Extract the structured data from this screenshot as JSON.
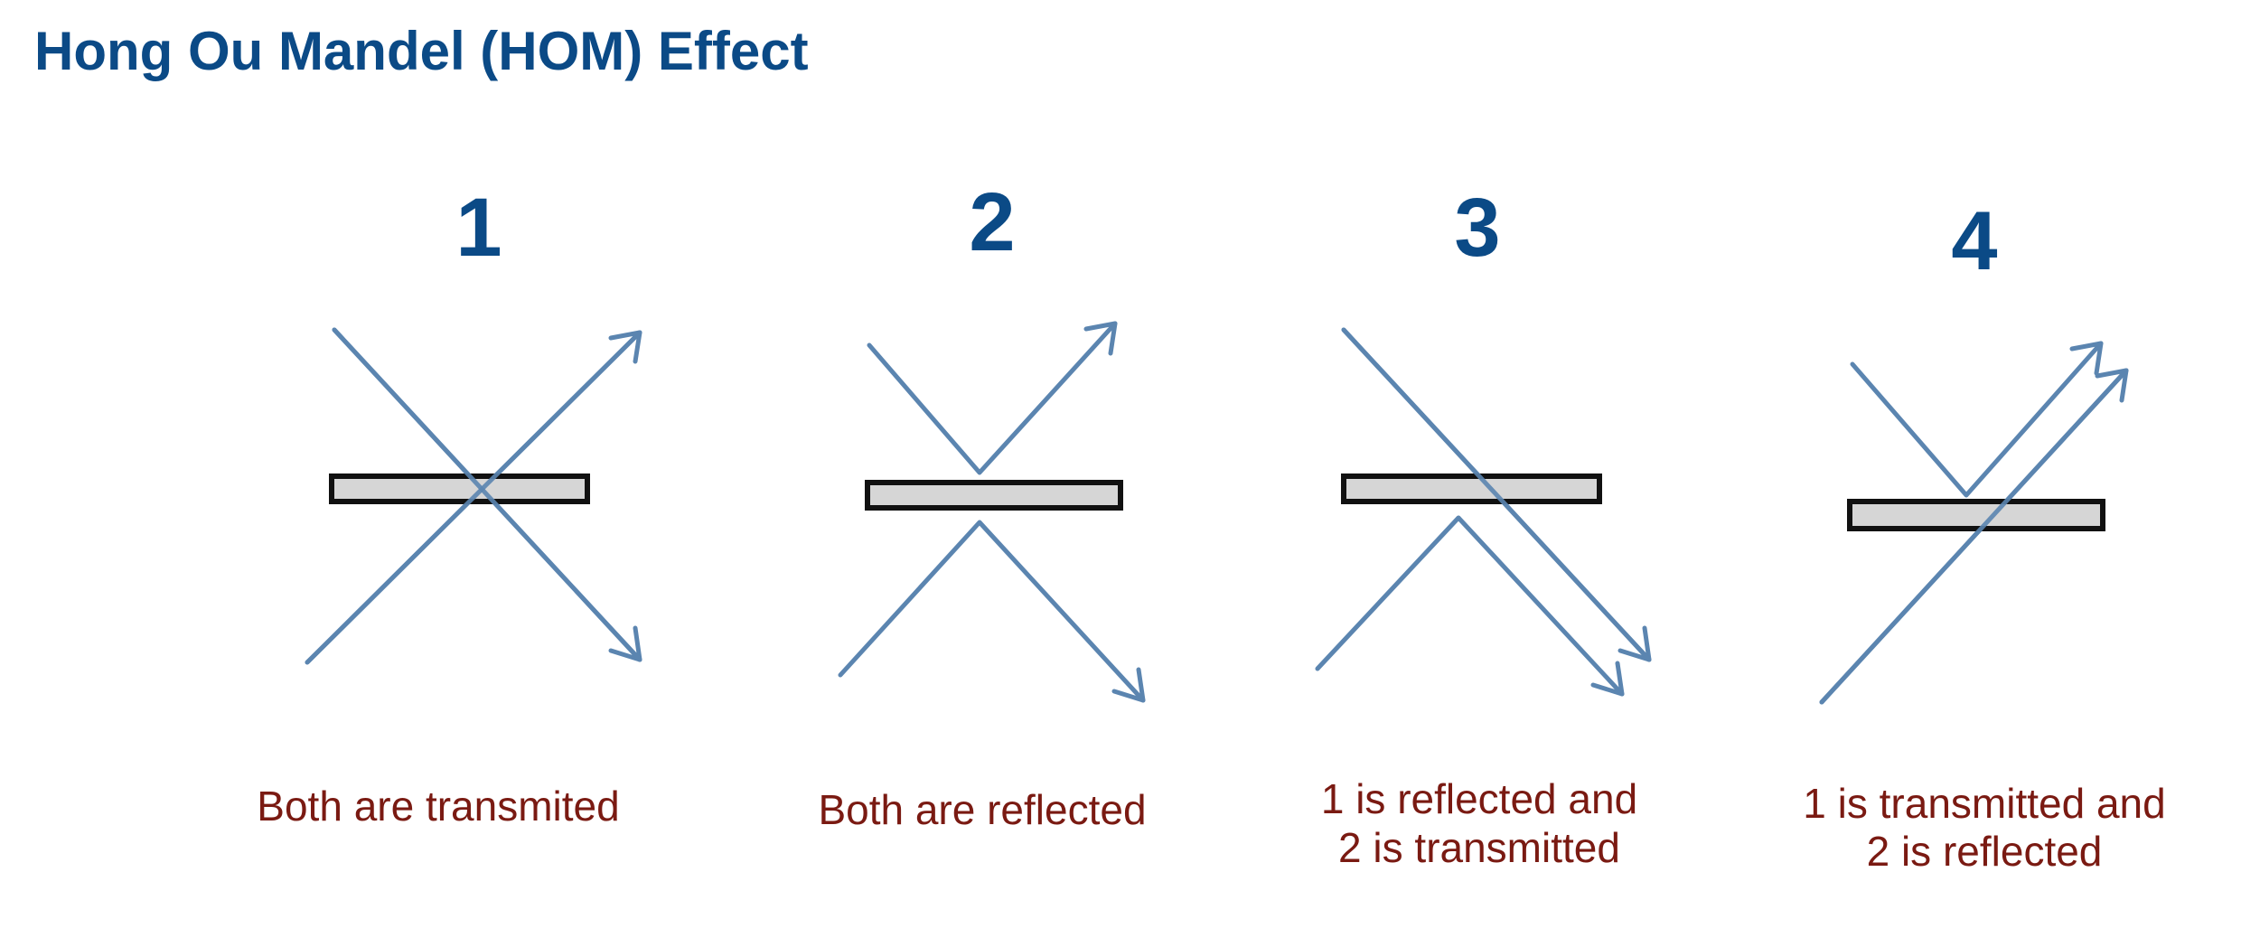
{
  "title": "Hong Ou Mandel (HOM) Effect",
  "colors": {
    "title": "#0b4a86",
    "panel_number": "#0b4a86",
    "caption": "#7a1a12",
    "beam": "#5b85b0",
    "beam_splitter_fill": "#d6d6d6",
    "beam_splitter_border": "#111111"
  },
  "panels": [
    {
      "number": "1",
      "caption_lines": [
        "Both are transmited"
      ]
    },
    {
      "number": "2",
      "caption_lines": [
        "Both are reflected"
      ]
    },
    {
      "number": "3",
      "caption_lines": [
        "1 is reflected and",
        "2 is transmitted"
      ]
    },
    {
      "number": "4",
      "caption_lines": [
        "1 is transmitted and",
        "2 is reflected"
      ]
    }
  ]
}
